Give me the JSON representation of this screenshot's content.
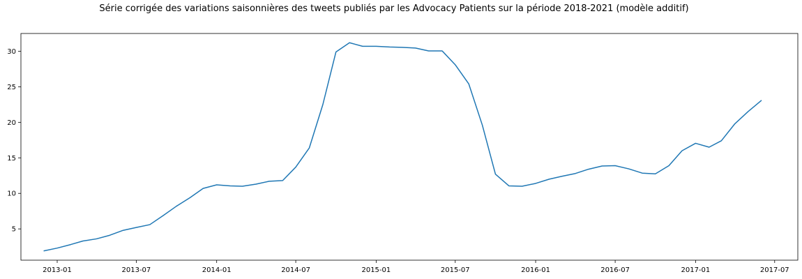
{
  "chart_data": {
    "type": "line",
    "title": "Série corrigée des variations saisonnières des tweets publiés par les Advocacy Patients sur la période 2018-2021 (modèle additif)",
    "xlabel": "",
    "ylabel": "",
    "xlim": [
      "2012-10-10",
      "2017-08-23"
    ],
    "ylim": [
      0.6,
      32.5
    ],
    "grid": false,
    "line_color": "#1f77b4",
    "x_ticks": [
      "2013-01",
      "2013-07",
      "2014-01",
      "2014-07",
      "2015-01",
      "2015-07",
      "2016-01",
      "2016-07",
      "2017-01",
      "2017-07"
    ],
    "y_ticks": [
      5,
      10,
      15,
      20,
      25,
      30
    ],
    "series": [
      {
        "x": [
          "2012-12-01",
          "2013-01-01",
          "2013-02-01",
          "2013-03-01",
          "2013-04-01",
          "2013-05-01",
          "2013-06-01",
          "2013-07-01",
          "2013-08-01",
          "2013-09-01",
          "2013-10-01",
          "2013-11-01",
          "2013-12-01",
          "2014-01-01",
          "2014-02-01",
          "2014-03-01",
          "2014-04-01",
          "2014-05-01",
          "2014-06-01",
          "2014-07-01",
          "2014-08-01",
          "2014-09-01",
          "2014-10-01",
          "2014-11-01",
          "2014-12-01",
          "2015-01-01",
          "2015-02-01",
          "2015-03-01",
          "2015-04-01",
          "2015-05-01",
          "2015-06-01",
          "2015-07-01",
          "2015-08-01",
          "2015-09-01",
          "2015-10-01",
          "2015-11-01",
          "2015-12-01",
          "2016-01-01",
          "2016-02-01",
          "2016-03-01",
          "2016-04-01",
          "2016-05-01",
          "2016-06-01",
          "2016-07-01",
          "2016-08-01",
          "2016-09-01",
          "2016-10-01",
          "2016-11-01",
          "2016-12-01",
          "2017-01-01",
          "2017-02-01",
          "2017-03-01",
          "2017-04-01",
          "2017-05-01",
          "2017-06-01"
        ],
        "y": [
          1.9,
          2.3,
          2.8,
          3.3,
          3.6,
          4.1,
          4.8,
          5.2,
          5.6,
          6.9,
          8.2,
          9.4,
          10.7,
          11.2,
          11.05,
          11.0,
          11.3,
          11.7,
          11.8,
          13.7,
          16.4,
          22.5,
          29.9,
          31.2,
          30.7,
          30.7,
          30.6,
          30.55,
          30.45,
          30.05,
          30.05,
          28.1,
          25.4,
          19.6,
          12.7,
          11.05,
          11.0,
          11.4,
          12.0,
          12.4,
          12.8,
          13.4,
          13.85,
          13.9,
          13.45,
          12.85,
          12.75,
          13.9,
          16.0,
          17.05,
          16.5,
          17.4,
          19.8,
          21.5,
          23.1
        ]
      }
    ]
  }
}
